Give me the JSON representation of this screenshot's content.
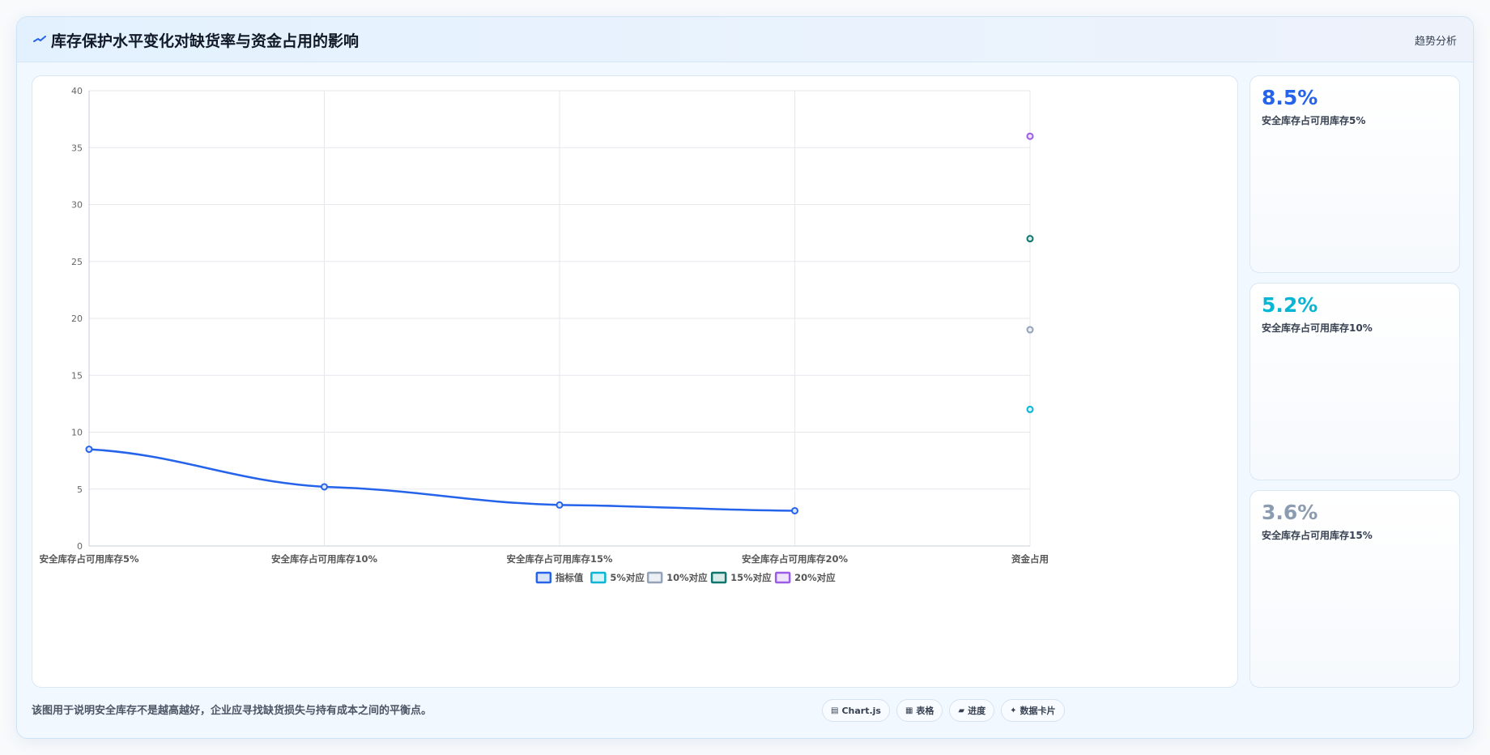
{
  "header": {
    "icon": "trend-line-icon",
    "title": "库存保护水平变化对缺货率与资金占用的影响",
    "tag": "趋势分析"
  },
  "chart_data": {
    "type": "line",
    "categories": [
      "安全库存占可用库存5%",
      "安全库存占可用库存10%",
      "安全库存占可用库存15%",
      "安全库存占可用库存20%",
      "资金占用"
    ],
    "ylim": [
      0,
      40
    ],
    "yticks": [
      0,
      5,
      10,
      15,
      20,
      25,
      30,
      35,
      40
    ],
    "grid": true,
    "legend_position": "bottom",
    "series": [
      {
        "name": "指标值",
        "color": "#2563eb",
        "values": [
          8.5,
          5.2,
          3.6,
          3.1,
          null
        ],
        "fill_color": "#dbe5f8"
      },
      {
        "name": "5%对应",
        "color": "#06b6d4",
        "values": [
          null,
          null,
          null,
          null,
          12
        ],
        "fill_color": "#d7f3f8"
      },
      {
        "name": "10%对应",
        "color": "#94a3b8",
        "values": [
          null,
          null,
          null,
          null,
          19
        ],
        "fill_color": "#eceff3"
      },
      {
        "name": "15%对应",
        "color": "#0f766e",
        "values": [
          null,
          null,
          null,
          null,
          27
        ],
        "fill_color": "#d8ebe9"
      },
      {
        "name": "20%对应",
        "color": "#9b5de5",
        "values": [
          null,
          null,
          null,
          null,
          36
        ],
        "fill_color": "#efe4fb"
      }
    ]
  },
  "kpis": [
    {
      "value": "8.5%",
      "label": "安全库存占可用库存5%",
      "color": "#2563eb"
    },
    {
      "value": "5.2%",
      "label": "安全库存占可用库存10%",
      "color": "#06b6d4"
    },
    {
      "value": "3.6%",
      "label": "安全库存占可用库存15%",
      "color": "#8b9bb0"
    }
  ],
  "footer": {
    "note": "该图用于说明安全库存不是越高越好，企业应寻找缺货损失与持有成本之间的平衡点。",
    "chips": [
      {
        "icon": "chart-icon",
        "glyph": "▤",
        "label": "Chart.js"
      },
      {
        "icon": "table-icon",
        "glyph": "▦",
        "label": "表格"
      },
      {
        "icon": "progress-icon",
        "glyph": "▰",
        "label": "进度"
      },
      {
        "icon": "card-icon",
        "glyph": "✦",
        "label": "数据卡片"
      }
    ]
  }
}
